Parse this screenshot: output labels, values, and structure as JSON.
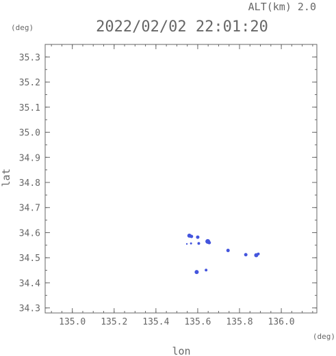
{
  "header": {
    "alt_label": "ALT(km) 2.0",
    "timestamp": "2022/02/02 22:01:20"
  },
  "chart_data": {
    "type": "scatter",
    "xlabel": "lon",
    "ylabel": "lat",
    "x_unit": "(deg)",
    "y_unit": "(deg)",
    "xlim": [
      134.87,
      136.17
    ],
    "ylim": [
      34.28,
      35.35
    ],
    "x_ticks": [
      "135.0",
      "135.2",
      "135.4",
      "135.6",
      "135.8",
      "136.0"
    ],
    "y_ticks": [
      "34.3",
      "34.4",
      "34.5",
      "34.6",
      "34.7",
      "34.8",
      "34.9",
      "35.0",
      "35.1",
      "35.2",
      "35.3"
    ],
    "grid": false,
    "marker_color": "#4455dd",
    "points": [
      {
        "lon": 135.56,
        "lat": 34.588,
        "size": 3
      },
      {
        "lon": 135.57,
        "lat": 34.585,
        "size": 2.5
      },
      {
        "lon": 135.6,
        "lat": 34.582,
        "size": 2.5
      },
      {
        "lon": 135.548,
        "lat": 34.555,
        "size": 1.2
      },
      {
        "lon": 135.568,
        "lat": 34.557,
        "size": 1.5
      },
      {
        "lon": 135.605,
        "lat": 34.557,
        "size": 2
      },
      {
        "lon": 135.648,
        "lat": 34.565,
        "size": 3.5
      },
      {
        "lon": 135.655,
        "lat": 34.56,
        "size": 2.5
      },
      {
        "lon": 135.745,
        "lat": 34.529,
        "size": 2.5
      },
      {
        "lon": 135.83,
        "lat": 34.512,
        "size": 2.5
      },
      {
        "lon": 135.88,
        "lat": 34.51,
        "size": 3
      },
      {
        "lon": 135.89,
        "lat": 34.515,
        "size": 2
      },
      {
        "lon": 135.595,
        "lat": 34.443,
        "size": 3
      },
      {
        "lon": 135.64,
        "lat": 34.451,
        "size": 2
      }
    ]
  }
}
